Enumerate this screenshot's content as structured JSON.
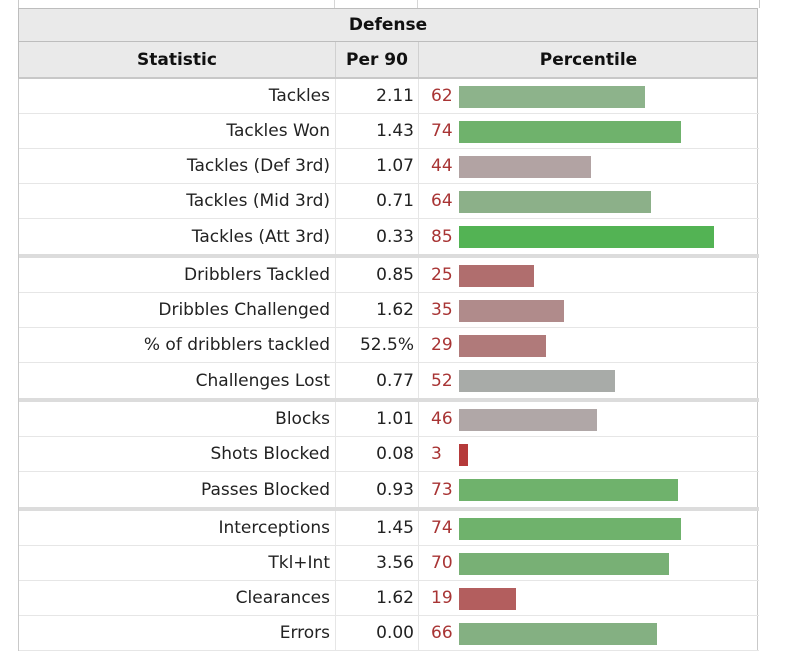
{
  "section_title": "Defense",
  "columns": {
    "statistic": "Statistic",
    "per90": "Per 90",
    "percentile": "Percentile"
  },
  "rows": [
    {
      "stat": "Tackles",
      "per90": "2.11",
      "pct": 62,
      "color": "#8db38b",
      "group_end": false
    },
    {
      "stat": "Tackles Won",
      "per90": "1.43",
      "pct": 74,
      "color": "#6fb26c",
      "group_end": false
    },
    {
      "stat": "Tackles (Def 3rd)",
      "per90": "1.07",
      "pct": 44,
      "color": "#b2a3a3",
      "group_end": false
    },
    {
      "stat": "Tackles (Mid 3rd)",
      "per90": "0.71",
      "pct": 64,
      "color": "#8cb089",
      "group_end": false
    },
    {
      "stat": "Tackles (Att 3rd)",
      "per90": "0.33",
      "pct": 85,
      "color": "#53b354",
      "group_end": true
    },
    {
      "stat": "Dribblers Tackled",
      "per90": "0.85",
      "pct": 25,
      "color": "#b06e6e",
      "group_end": false
    },
    {
      "stat": "Dribbles Challenged",
      "per90": "1.62",
      "pct": 35,
      "color": "#b08b8b",
      "group_end": false
    },
    {
      "stat": "% of dribblers tackled",
      "per90": "52.5%",
      "pct": 29,
      "color": "#b07a7a",
      "group_end": false
    },
    {
      "stat": "Challenges Lost",
      "per90": "0.77",
      "pct": 52,
      "color": "#a8aba8",
      "group_end": true
    },
    {
      "stat": "Blocks",
      "per90": "1.01",
      "pct": 46,
      "color": "#b0a7a7",
      "group_end": false
    },
    {
      "stat": "Shots Blocked",
      "per90": "0.08",
      "pct": 3,
      "color": "#b53a3a",
      "group_end": false
    },
    {
      "stat": "Passes Blocked",
      "per90": "0.93",
      "pct": 73,
      "color": "#6fb26c",
      "group_end": true
    },
    {
      "stat": "Interceptions",
      "per90": "1.45",
      "pct": 74,
      "color": "#6fb26c",
      "group_end": false
    },
    {
      "stat": "Tkl+Int",
      "per90": "3.56",
      "pct": 70,
      "color": "#78b075",
      "group_end": false
    },
    {
      "stat": "Clearances",
      "per90": "1.62",
      "pct": 19,
      "color": "#b35e5e",
      "group_end": false
    },
    {
      "stat": "Errors",
      "per90": "0.00",
      "pct": 66,
      "color": "#84b082",
      "group_end": false
    }
  ]
}
